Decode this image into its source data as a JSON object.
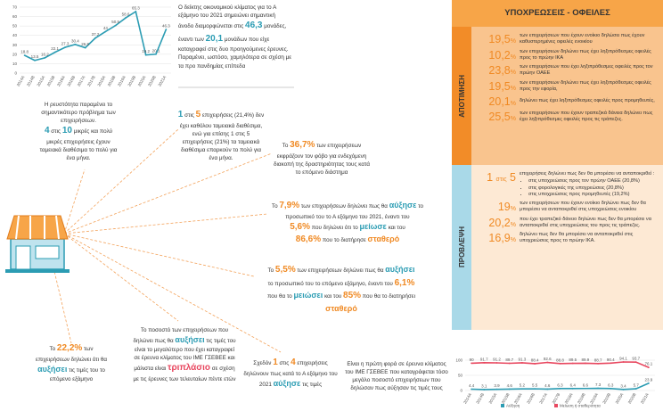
{
  "chart_data": [
    {
      "type": "line",
      "categories": [
        "2014Α",
        "2014Β",
        "2015Α",
        "2015Β",
        "2016Α",
        "2016Β",
        "2017Α",
        "2017Β",
        "2018Α",
        "2018Β",
        "2019Α",
        "2019Β",
        "2020Α",
        "2020Β",
        "2021Α"
      ],
      "values": [
        18.8,
        13.5,
        16.2,
        22.1,
        27.3,
        30.4,
        26.9,
        37.2,
        44.0,
        50.5,
        58.6,
        65.3,
        19.2,
        20.1,
        46.3
      ],
      "color": "#2b9cb3",
      "ylim": [
        0,
        70
      ],
      "yticks": [
        0,
        10,
        20,
        30,
        40,
        50,
        60,
        70
      ]
    },
    {
      "type": "line",
      "categories": [
        "2014Α",
        "2014Β",
        "2015Α",
        "2015Β",
        "2016Α",
        "2016Β",
        "2017Α",
        "2017Β",
        "2018Α",
        "2018Β",
        "2019Α",
        "2019Β",
        "2020Α",
        "2020Β",
        "2021Α"
      ],
      "series": [
        {
          "name": "Αύξηση",
          "color": "#2b9cb3",
          "values": [
            4.4,
            3.1,
            3.9,
            4.6,
            5.2,
            5.5,
            4.6,
            6.3,
            6.4,
            6.6,
            7.3,
            6.3,
            3.4,
            5.7,
            23.9
          ]
        },
        {
          "name": "Μείωση ή σταθερότητα",
          "color": "#e8475f",
          "values": [
            90.0,
            91.7,
            91.2,
            89.7,
            91.3,
            88.4,
            92.6,
            88.8,
            89.5,
            89.9,
            88.7,
            90.4,
            94.1,
            93.7,
            76.1
          ]
        }
      ],
      "ylim": [
        0,
        100
      ],
      "yticks": [
        0,
        50,
        100
      ]
    }
  ],
  "climate": {
    "intro": "Ο δείκτης οικονομικού κλίματος για το Α εξάμηνο του 2021 σημειώνει σημαντική άνοδο διαμορφώνεται στις",
    "value": "46,3",
    "mid": "μονάδες, έναντι των",
    "previous": "20,1",
    "rest": "μονάδων που είχε καταγραφεί στις δυο προηγούμενες έρευνες. Παραμένει, ωστόσο, χαμηλότερα σε σχέση με τα προ πανδημίας επίπεδα"
  },
  "liquidity": {
    "intro": "Η ρευστότητα παραμένει το σημαντικότερο πρόβλημα των επιχειρήσεων.",
    "n1": "4",
    "of": "στις",
    "n2": "10",
    "text": "μικρές και πολύ μικρές επιχειρήσεις έχουν ταμειακά διαθέσιμα το πολύ για ένα μήνα."
  },
  "cash": {
    "n1": "1",
    "of": "στις",
    "n2": "5",
    "text": "επιχειρήσεις (21,4%) δεν έχει καθόλου ταμειακά διαθέσιμα, ενώ για επίσης 1 στις 5 επιχειρήσεις (21%) τα ταμειακά διαθέσιμα επαρκούν το πολύ για ένα μήνα."
  },
  "closure": {
    "pre": "Το",
    "value": "36,7%",
    "text": "των επιχειρήσεων εκφράζουν τον φόβο για ενδεχόμενη διακοπή της δραστηριότητας τους κατά το επόμενο διάστημα"
  },
  "staff_past": {
    "pre": "Το",
    "v1": "7,9%",
    "t1": "των επιχειρήσεων δηλώνει πως θα",
    "k1": "αύξησε",
    "t2": "το προσωπικό του το Α εξάμηνο του 2021, έναντι του",
    "v2": "5,6%",
    "t3": "που δηλώνει ότι το",
    "k2": "μείωσε",
    "t4": "και του",
    "v3": "86,6%",
    "t5": "που το διατήρησε",
    "k3": "σταθερό"
  },
  "staff_next": {
    "pre": "Το",
    "v1": "5,5%",
    "t1": "των επιχειρήσεων δηλώνει πως θα",
    "k1": "αυξήσει",
    "t2": "το προσωπικό του το επόμενο εξάμηνο, έναντι του",
    "v2": "6,1%",
    "t3": "που θα το",
    "k2": "μειώσει",
    "t4": "και του",
    "v3": "85%",
    "t5": "που θα το διατηρήσει",
    "k3": "σταθερό"
  },
  "prices_record": {
    "t1": "Το ποσοστό των επιχειρήσεων που δηλώνει πως θα",
    "k1": "αυξήσει",
    "t2": "τις τιμές του είναι το μεγαλύτερο που έχει καταγραφεί σε έρευνα κλίματος του ΙΜΕ ΓΣΕΒΕΕ και",
    "t3": "μάλιστα είναι",
    "k2": "τριπλάσιο",
    "t4": "σε σχέση με τις έρευνες των τελευταίων πέντε ετών"
  },
  "prices_next": {
    "pre": "Το",
    "value": "22,2%",
    "t1": "των επιχειρήσεων δηλώνει ότι θα",
    "k1": "αυξήσει",
    "t2": "τις τιμές του το επόμενο εξάμηνο"
  },
  "prices_past": {
    "pre": "Σχεδόν",
    "n1": "1",
    "of": "στις",
    "n2": "4",
    "t1": "επιχειρήσεις δηλώνουν πως κατά το Α εξάμηνο του 2021",
    "k1": "αύξησε",
    "t2": "τις τιμές"
  },
  "prices_first": "Είναι η πρώτη φορά σε έρευνα κλίματος του ΙΜΕ ΓΣΕΒΕΕ που καταγράφεται τόσο μεγάλο ποσοστό επιχειρήσεων που δηλώσαν πως αύξησαν τις τιμές τους",
  "debts": {
    "title": "ΥΠΟΧΡΕΩΣΕΙΣ - ΟΦΕΙΛΕΣ",
    "assessment": {
      "label": "ΑΠΟΤΙΜΗΣΗ",
      "items": [
        {
          "value": "19,5",
          "unit": "%",
          "text": "των επιχειρήσεων που έχουν ενοίκιο δηλώσει πως έχουν καθυστερημένες οφειλές ενοικίου"
        },
        {
          "value": "10,2",
          "unit": "%",
          "text": "των επιχειρήσεων δηλώνει πως έχει ληξιπρόθεσμες οφειλές προς το πρώην ΙΚΑ"
        },
        {
          "value": "23,8",
          "unit": "%",
          "text": "των επιχειρήσεων που έχει ληξιπρόθεσμες οφειλές προς τον πρώην ΟΑΕΕ"
        },
        {
          "value": "19,5",
          "unit": "%",
          "text": "των επιχειρήσεων δηλώνει πως έχει ληξιπρόθεσμες οφειλές προς την εφορία,"
        },
        {
          "value": "20,1",
          "unit": "%",
          "text": "δηλώνει πως έχει ληξιπρόθεσμες οφειλές προς προμηθευτές,"
        },
        {
          "value": "25,5",
          "unit": "%",
          "text": "των επιχειρήσεων που έχουν τραπεζικά δάνεια δηλώνει πως έχει ληξιπρόθεσμες οφειλές προς τις τράπεζες."
        }
      ]
    },
    "forecast": {
      "label": "ΠΡΟΒΛΕΨΗ",
      "first": {
        "n1": "1",
        "of": "στις",
        "n2": "5",
        "text": "επιχειρήσεις δηλώνει πως δεν θα μπορέσει να ανταποκριθεί :",
        "bullets": [
          "στις υποχρεώσεις προς τον πρώην ΟΑΕΕ (20,8%)",
          "στις φορολογικές της υποχρεώσεις (20,8%)",
          "στις υποχρεώσεις προς προμηθευτές (19,2%)"
        ]
      },
      "items": [
        {
          "value": "19",
          "unit": "%",
          "text": "των επιχειρήσεων που έχουν ενοίκιο δηλώνει πως δεν θα μπορέσει να ανταποκριθεί στις υποχρεώσεις ενοικίου"
        },
        {
          "value": "20,2",
          "unit": "%",
          "text": "που έχει τραπεζικό δάνειο δηλώνει πως δεν θα μπορέσει να ανταποκριθεί στις υποχρεώσεις του προς τις τράπεζες."
        },
        {
          "value": "16,9",
          "unit": "%",
          "text": "δηλώνει πως δεν θα μπορέσει να ανταποκριθεί στις υποχρεώσεις προς το πρώην ΙΚΑ."
        }
      ]
    }
  }
}
